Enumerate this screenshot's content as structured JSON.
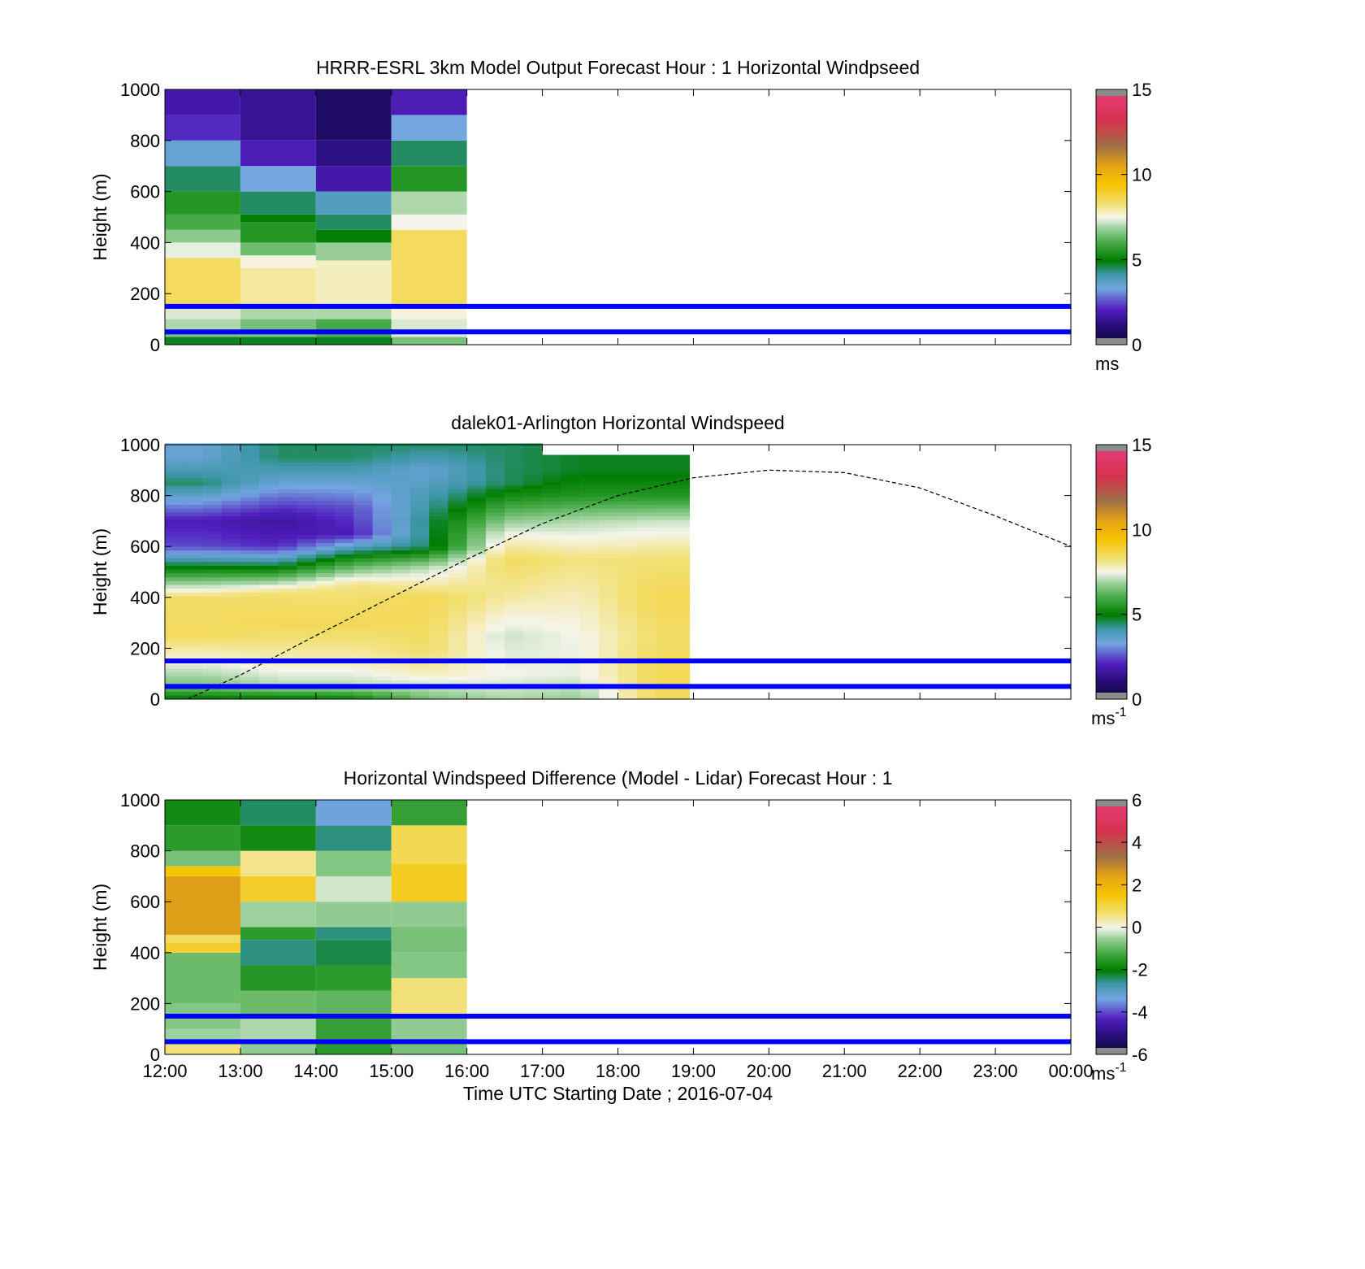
{
  "figure": {
    "xlabel": "Time UTC  Starting Date ; 2016-07-04",
    "x_ticks": [
      "12:00",
      "13:00",
      "14:00",
      "15:00",
      "16:00",
      "17:00",
      "18:00",
      "19:00",
      "20:00",
      "21:00",
      "22:00",
      "23:00",
      "00:00"
    ]
  },
  "chart_data": [
    {
      "type": "heatmap",
      "title": "HRRR-ESRL 3km Model Output   Forecast Hour : 1 Horizontal Windpseed",
      "ylabel": "Height (m)",
      "xlim_hours": [
        12,
        24
      ],
      "ylim": [
        0,
        1000
      ],
      "y_ticks": [
        "0",
        "200",
        "400",
        "600",
        "800",
        "1000"
      ],
      "colorbar": {
        "ticks": [
          "0",
          "5",
          "10",
          "15"
        ],
        "range": [
          0,
          15
        ],
        "unit": "ms",
        "unit_sup": ""
      },
      "reference_lines_m": [
        50,
        150
      ],
      "reference_line_color": "#0000ff",
      "columns": [
        {
          "start_hour": 12,
          "end_hour": 13,
          "cells": [
            [
              0,
              30,
              4.8
            ],
            [
              30,
              50,
              6.5
            ],
            [
              50,
              100,
              7.0
            ],
            [
              100,
              150,
              7.3
            ],
            [
              150,
              340,
              8.5
            ],
            [
              340,
              400,
              7.4
            ],
            [
              400,
              450,
              6.7
            ],
            [
              450,
              510,
              6.0
            ],
            [
              510,
              600,
              5.5
            ],
            [
              600,
              700,
              4.5
            ],
            [
              700,
              800,
              3.5
            ],
            [
              800,
              900,
              2.2
            ],
            [
              900,
              1000,
              1.8
            ]
          ]
        },
        {
          "start_hour": 13,
          "end_hour": 14,
          "cells": [
            [
              0,
              30,
              4.8
            ],
            [
              30,
              100,
              6.5
            ],
            [
              100,
              150,
              7.0
            ],
            [
              150,
              300,
              8.0
            ],
            [
              300,
              350,
              7.6
            ],
            [
              350,
              400,
              6.4
            ],
            [
              400,
              480,
              5.5
            ],
            [
              480,
              510,
              5.0
            ],
            [
              510,
              600,
              4.5
            ],
            [
              600,
              700,
              3.3
            ],
            [
              700,
              800,
              2.0
            ],
            [
              800,
              1000,
              1.5
            ]
          ]
        },
        {
          "start_hour": 14,
          "end_hour": 15,
          "cells": [
            [
              0,
              30,
              4.8
            ],
            [
              30,
              100,
              6.0
            ],
            [
              100,
              150,
              7.0
            ],
            [
              150,
              330,
              7.8
            ],
            [
              330,
              400,
              6.8
            ],
            [
              400,
              450,
              5.0
            ],
            [
              450,
              510,
              4.5
            ],
            [
              510,
              600,
              3.8
            ],
            [
              600,
              700,
              1.8
            ],
            [
              700,
              800,
              1.2
            ],
            [
              800,
              1000,
              0.8
            ]
          ]
        },
        {
          "start_hour": 15,
          "end_hour": 16,
          "cells": [
            [
              0,
              30,
              6.5
            ],
            [
              30,
              100,
              7.3
            ],
            [
              100,
              150,
              7.6
            ],
            [
              150,
              450,
              8.5
            ],
            [
              450,
              510,
              7.5
            ],
            [
              510,
              600,
              7.0
            ],
            [
              600,
              700,
              5.5
            ],
            [
              700,
              800,
              4.5
            ],
            [
              800,
              900,
              3.3
            ],
            [
              900,
              1000,
              2.0
            ]
          ]
        }
      ]
    },
    {
      "type": "heatmap",
      "title": "dalek01-Arlington  Horizontal Windspeed",
      "ylabel": "Height (m)",
      "xlim_hours": [
        12,
        24
      ],
      "ylim": [
        0,
        1000
      ],
      "y_ticks": [
        "0",
        "200",
        "400",
        "600",
        "800",
        "1000"
      ],
      "colorbar": {
        "ticks": [
          "0",
          "5",
          "10",
          "15"
        ],
        "range": [
          0,
          15
        ],
        "unit": "ms",
        "unit_sup": "-1"
      },
      "reference_lines_m": [
        50,
        150
      ],
      "reference_line_color": "#0000ff",
      "data_end_hour": 18.95,
      "profiles": [
        {
          "hour": 12.5,
          "points": [
            [
              0,
              4.8
            ],
            [
              50,
              6.5
            ],
            [
              150,
              7.5
            ],
            [
              250,
              8.5
            ],
            [
              400,
              8.4
            ],
            [
              500,
              5.5
            ],
            [
              600,
              2.5
            ],
            [
              700,
              2.0
            ],
            [
              850,
              4.5
            ],
            [
              950,
              3.5
            ]
          ]
        },
        {
          "hour": 13.5,
          "points": [
            [
              0,
              4.8
            ],
            [
              50,
              7.0
            ],
            [
              150,
              7.8
            ],
            [
              300,
              8.6
            ],
            [
              420,
              8.3
            ],
            [
              500,
              5.5
            ],
            [
              600,
              2.2
            ],
            [
              700,
              1.6
            ],
            [
              850,
              3.5
            ],
            [
              950,
              4.5
            ]
          ]
        },
        {
          "hour": 14.5,
          "points": [
            [
              0,
              5.0
            ],
            [
              50,
              7.0
            ],
            [
              150,
              7.8
            ],
            [
              300,
              8.6
            ],
            [
              450,
              8.2
            ],
            [
              550,
              5.5
            ],
            [
              650,
              2.0
            ],
            [
              750,
              2.5
            ],
            [
              850,
              3.5
            ],
            [
              950,
              4.5
            ]
          ]
        },
        {
          "hour": 15.5,
          "points": [
            [
              0,
              6.5
            ],
            [
              100,
              7.8
            ],
            [
              200,
              8.4
            ],
            [
              400,
              8.6
            ],
            [
              520,
              7.0
            ],
            [
              600,
              4.5
            ],
            [
              700,
              4.5
            ],
            [
              800,
              4.0
            ],
            [
              900,
              3.5
            ],
            [
              1000,
              4.5
            ]
          ]
        },
        {
          "hour": 16.5,
          "points": [
            [
              0,
              7.0
            ],
            [
              100,
              7.5
            ],
            [
              250,
              7.2
            ],
            [
              400,
              8.0
            ],
            [
              550,
              8.5
            ],
            [
              650,
              7.5
            ],
            [
              750,
              6.0
            ],
            [
              850,
              4.5
            ],
            [
              950,
              4.5
            ]
          ]
        },
        {
          "hour": 17.5,
          "points": [
            [
              0,
              6.8
            ],
            [
              100,
              7.4
            ],
            [
              250,
              7.5
            ],
            [
              400,
              7.8
            ],
            [
              550,
              8.2
            ],
            [
              700,
              7.0
            ],
            [
              800,
              5.5
            ],
            [
              900,
              4.8
            ]
          ]
        },
        {
          "hour": 18.5,
          "points": [
            [
              0,
              8.5
            ],
            [
              100,
              8.6
            ],
            [
              250,
              8.4
            ],
            [
              400,
              8.6
            ],
            [
              550,
              8.3
            ],
            [
              700,
              7.2
            ],
            [
              800,
              5.5
            ],
            [
              900,
              4.8
            ]
          ]
        }
      ],
      "overlay_curve": {
        "style": "dashed",
        "points": [
          [
            12.3,
            0
          ],
          [
            13,
            95
          ],
          [
            14,
            250
          ],
          [
            15,
            400
          ],
          [
            16,
            550
          ],
          [
            17,
            690
          ],
          [
            18,
            800
          ],
          [
            19,
            870
          ],
          [
            20,
            900
          ],
          [
            21,
            890
          ],
          [
            22,
            830
          ],
          [
            23,
            720
          ],
          [
            24,
            600
          ]
        ]
      }
    },
    {
      "type": "heatmap",
      "title": "Horizontal Windspeed Difference (Model - Lidar) Forecast Hour : 1",
      "ylabel": "Height (m)",
      "xlim_hours": [
        12,
        24
      ],
      "ylim": [
        0,
        1000
      ],
      "y_ticks": [
        "0",
        "200",
        "400",
        "600",
        "800",
        "1000"
      ],
      "colorbar": {
        "ticks": [
          "-6",
          "-4",
          "-2",
          "0",
          "2",
          "4",
          "6"
        ],
        "range": [
          -6,
          6
        ],
        "unit": "ms",
        "unit_sup": "-1"
      },
      "reference_lines_m": [
        50,
        150
      ],
      "reference_line_color": "#0000ff",
      "columns": [
        {
          "start_hour": 12,
          "end_hour": 13,
          "cells": [
            [
              0,
              40,
              0.6
            ],
            [
              40,
              100,
              -0.5
            ],
            [
              100,
              200,
              -0.7
            ],
            [
              200,
              400,
              -0.9
            ],
            [
              400,
              440,
              1.2
            ],
            [
              440,
              470,
              0.8
            ],
            [
              470,
              700,
              2.5
            ],
            [
              700,
              740,
              1.5
            ],
            [
              740,
              800,
              -0.8
            ],
            [
              800,
              900,
              -1.5
            ],
            [
              900,
              1000,
              -1.8
            ]
          ]
        },
        {
          "start_hour": 13,
          "end_hour": 14,
          "cells": [
            [
              0,
              40,
              -0.6
            ],
            [
              40,
              150,
              -0.4
            ],
            [
              150,
              250,
              -0.9
            ],
            [
              250,
              350,
              -1.6
            ],
            [
              350,
              450,
              -2.5
            ],
            [
              450,
              500,
              -1.5
            ],
            [
              500,
              600,
              -0.5
            ],
            [
              600,
              700,
              1.2
            ],
            [
              700,
              800,
              0.5
            ],
            [
              800,
              900,
              -1.8
            ],
            [
              900,
              1000,
              -2.4
            ]
          ]
        },
        {
          "start_hour": 14,
          "end_hour": 15,
          "cells": [
            [
              0,
              40,
              -1.5
            ],
            [
              40,
              150,
              -1.4
            ],
            [
              150,
              250,
              -1.0
            ],
            [
              250,
              350,
              -1.5
            ],
            [
              350,
              450,
              -2.3
            ],
            [
              450,
              500,
              -2.5
            ],
            [
              500,
              600,
              -0.6
            ],
            [
              600,
              700,
              -0.2
            ],
            [
              700,
              800,
              -0.7
            ],
            [
              800,
              900,
              -2.5
            ],
            [
              900,
              1000,
              -3.3
            ]
          ]
        },
        {
          "start_hour": 15,
          "end_hour": 16,
          "cells": [
            [
              0,
              40,
              -0.8
            ],
            [
              40,
              150,
              -0.6
            ],
            [
              150,
              300,
              0.6
            ],
            [
              300,
              400,
              -0.7
            ],
            [
              400,
              500,
              -0.8
            ],
            [
              500,
              600,
              -0.6
            ],
            [
              600,
              750,
              1.3
            ],
            [
              750,
              900,
              0.9
            ],
            [
              900,
              1000,
              -1.4
            ]
          ]
        }
      ]
    }
  ]
}
